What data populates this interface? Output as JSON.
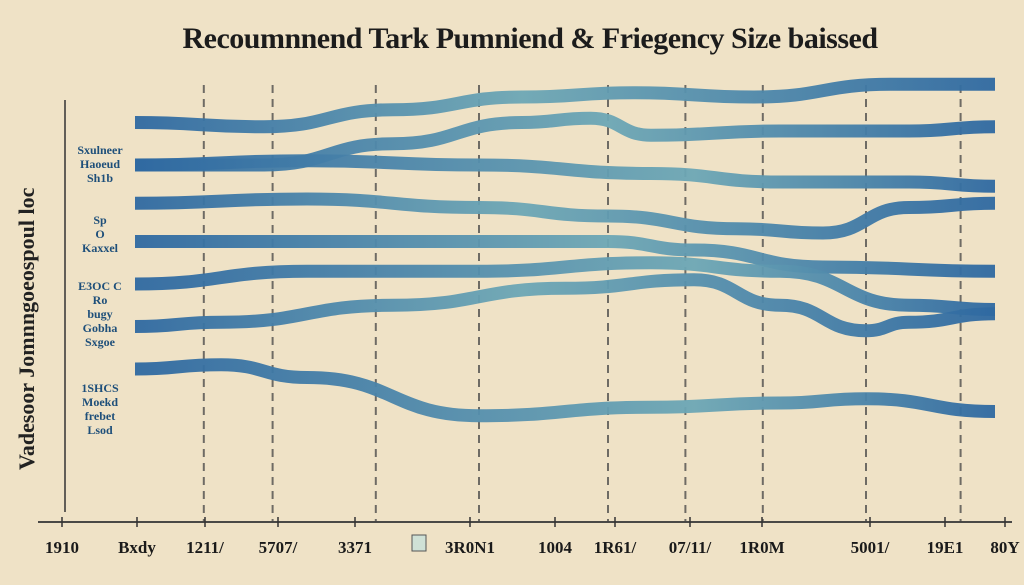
{
  "chart_data": {
    "type": "line",
    "title": "Recoumnnend Tark Pumniend & Friegency Size baissed",
    "ylabel": "Vadesoor Jomnngoeospoul loc",
    "xlabel": "",
    "x_tick_labels": [
      "1910",
      "Bxdy",
      "1211/",
      "5707/",
      "3371",
      "3R0N1",
      "1004",
      "1R61/",
      "07/11/",
      "1R0M",
      "5001/",
      "19E1",
      "80Y"
    ],
    "y_annotations": [
      {
        "lines": [
          "Sxulneer",
          "Haoeud",
          "Sh1b"
        ]
      },
      {
        "lines": [
          "Sp",
          "O",
          "Kaxxel"
        ]
      },
      {
        "lines": [
          "E3OC C",
          "Ro",
          "bugy",
          "Gobha",
          "Sxgoe"
        ]
      },
      {
        "lines": [
          "1SHCS",
          "Moekd",
          "frebet",
          "Lsod"
        ]
      }
    ],
    "xlim": [
      0,
      100
    ],
    "ylim": [
      0,
      100
    ],
    "colors": {
      "line_primary": "#2f69a1",
      "line_faded": "#6da7b5",
      "axis": "#333333",
      "dash": "#444444"
    },
    "series": [
      {
        "x": [
          0,
          15,
          30,
          45,
          58,
          72,
          88,
          100
        ],
        "y": [
          90,
          89,
          93,
          96,
          97,
          96,
          99,
          99
        ]
      },
      {
        "x": [
          0,
          15,
          30,
          45,
          53,
          60,
          75,
          90,
          100
        ],
        "y": [
          80,
          80,
          85,
          90,
          91,
          87,
          88,
          88,
          89
        ]
      },
      {
        "x": [
          0,
          20,
          40,
          60,
          75,
          90,
          100
        ],
        "y": [
          80,
          81,
          80,
          78,
          76,
          76,
          75
        ]
      },
      {
        "x": [
          0,
          20,
          40,
          55,
          70,
          80,
          90,
          100
        ],
        "y": [
          71,
          72,
          70,
          68,
          65,
          64,
          70,
          71
        ]
      },
      {
        "x": [
          0,
          20,
          40,
          55,
          65,
          80,
          100
        ],
        "y": [
          62,
          62,
          62,
          62,
          60,
          56,
          55
        ]
      },
      {
        "x": [
          0,
          20,
          40,
          60,
          75,
          90,
          100
        ],
        "y": [
          52,
          55,
          55,
          57,
          55,
          47,
          46
        ]
      },
      {
        "x": [
          0,
          10,
          30,
          50,
          65,
          75,
          85,
          90,
          100
        ],
        "y": [
          42,
          43,
          47,
          51,
          53,
          47,
          41,
          43,
          45
        ]
      },
      {
        "x": [
          8,
          20,
          40,
          70,
          100
        ],
        "y": [
          38,
          38,
          38,
          38,
          38
        ]
      },
      {
        "x": [
          0,
          10,
          20,
          40,
          60,
          75,
          85,
          100
        ],
        "y": [
          32,
          33,
          30,
          21,
          23,
          24,
          25,
          22
        ]
      },
      {
        "x": [
          38,
          63
        ],
        "y": [
          16,
          16
        ]
      }
    ],
    "dashed_verticals_x": [
      8,
      16,
      28,
      40,
      55,
      64,
      73,
      85,
      96
    ]
  }
}
